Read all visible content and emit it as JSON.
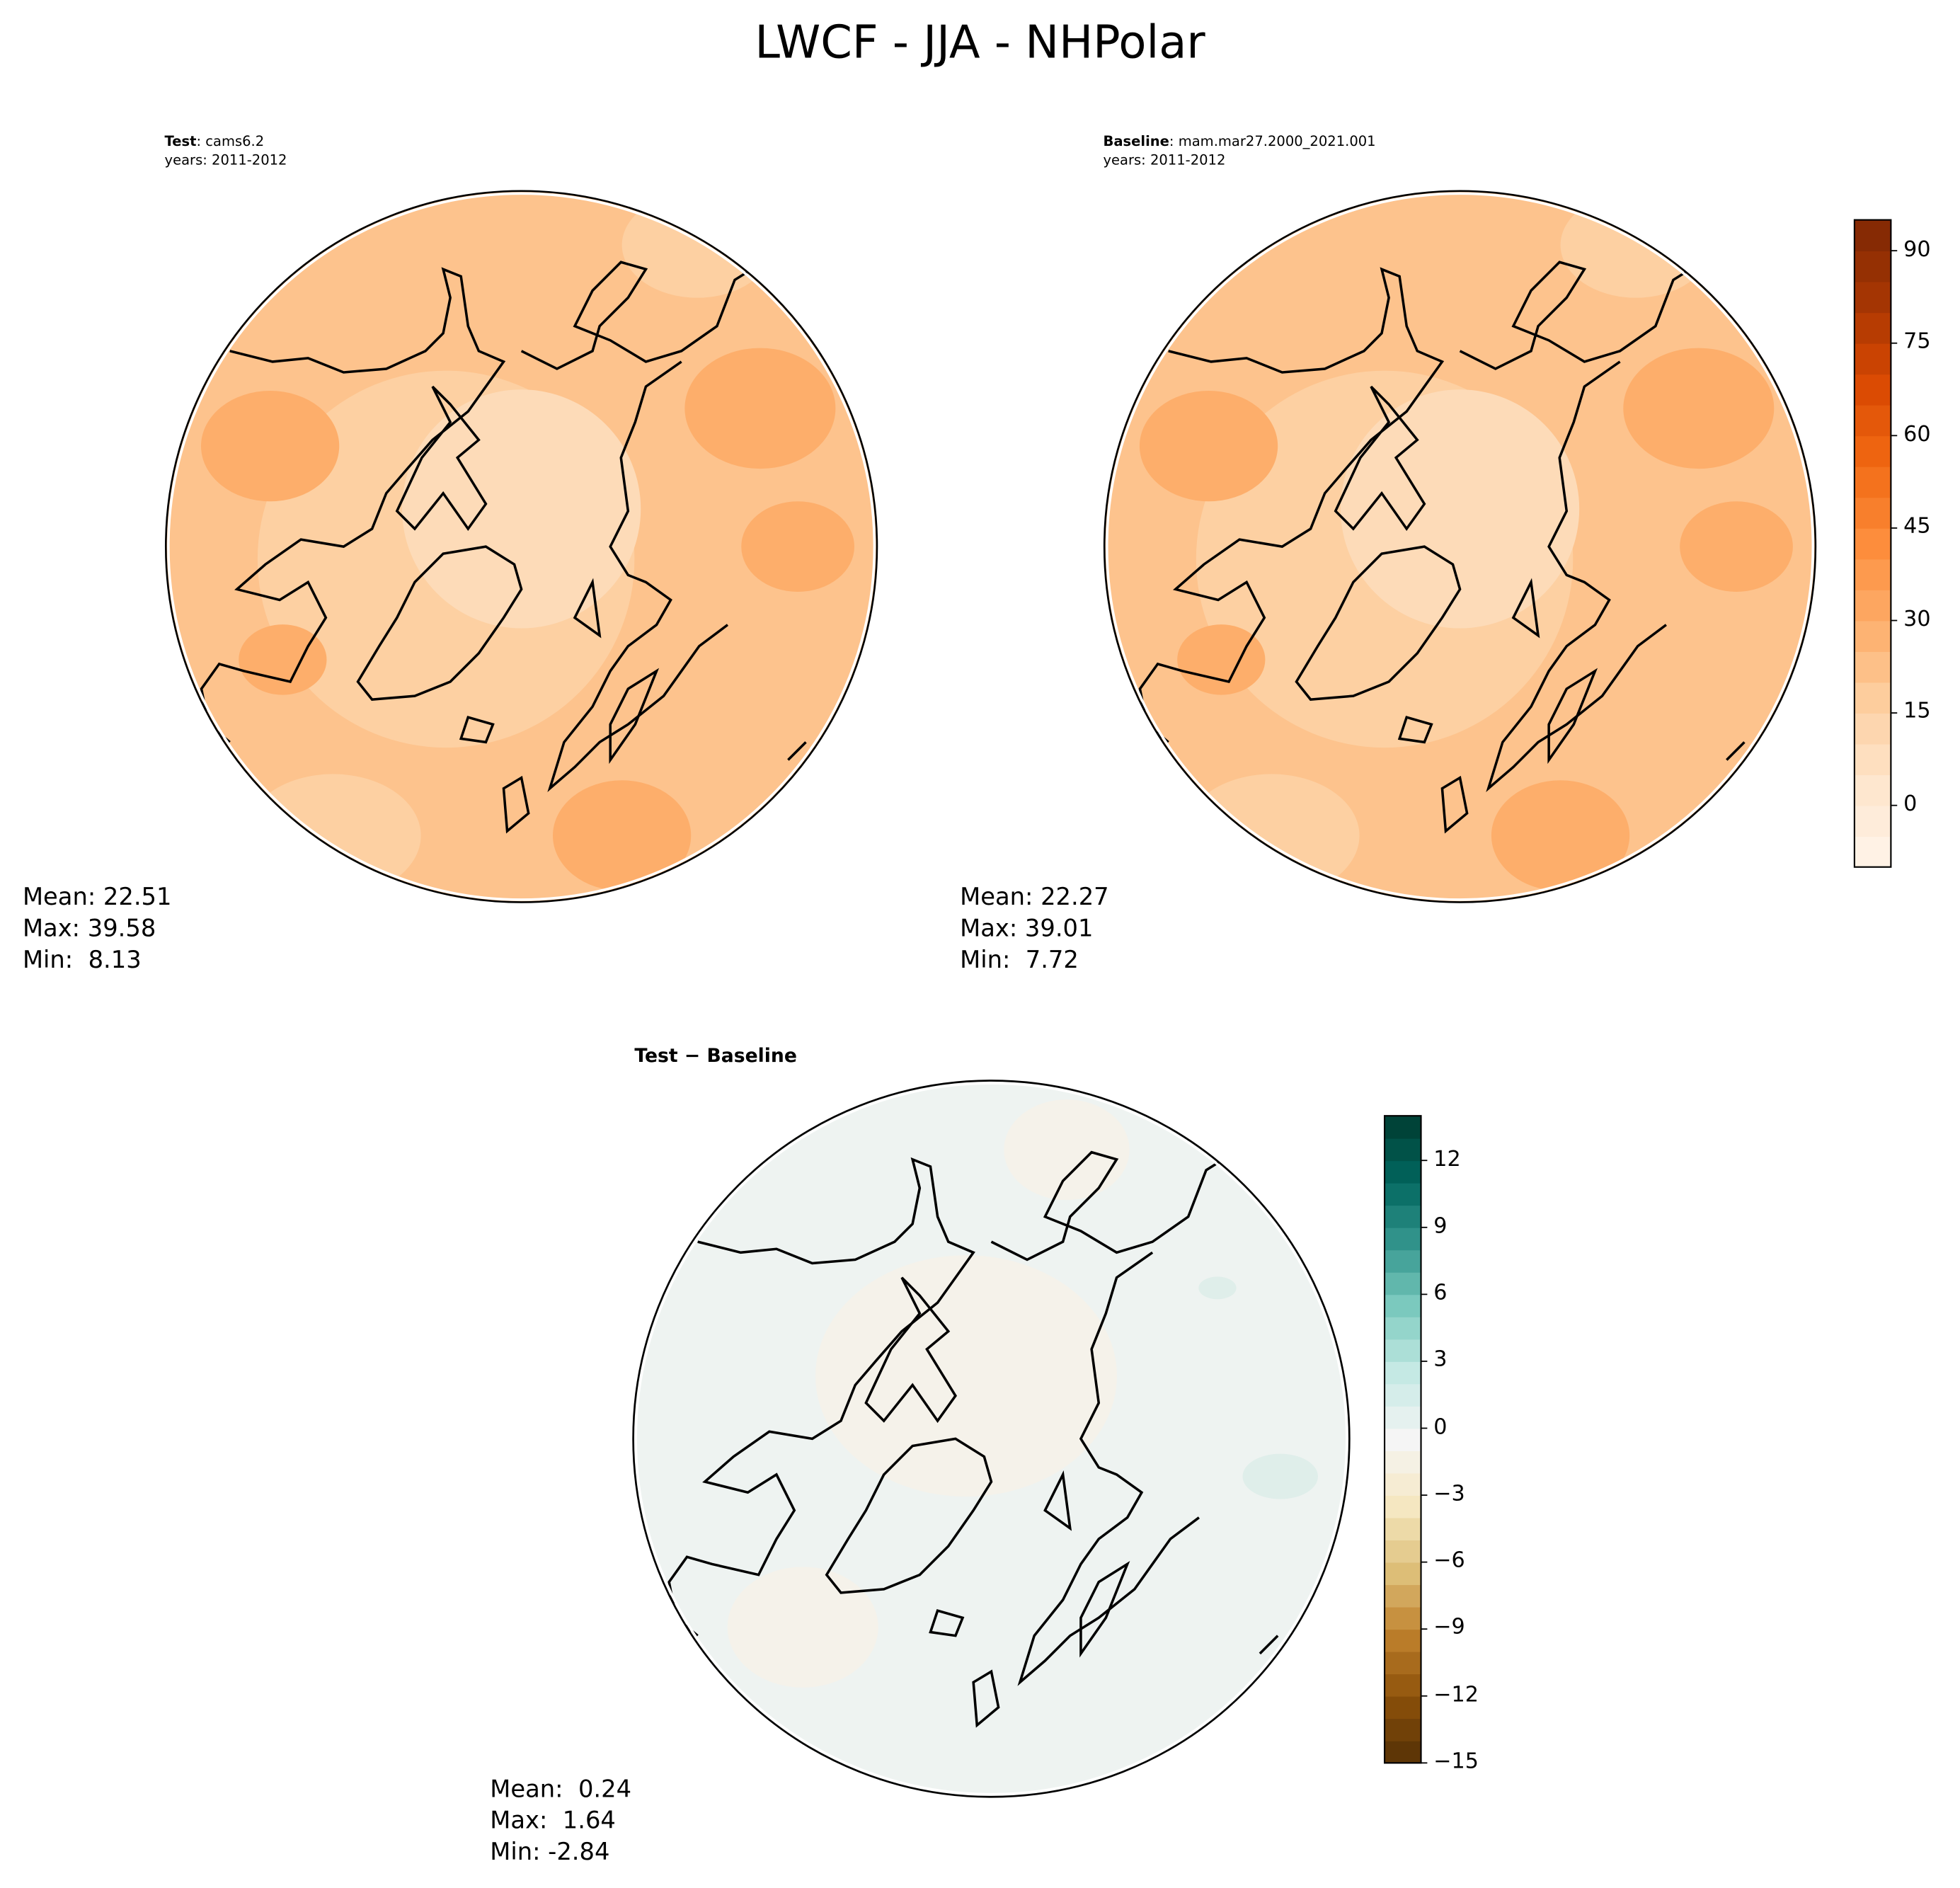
{
  "figure": {
    "title": "LWCF - JJA - NHPolar"
  },
  "chart_data": [
    {
      "type": "heatmap",
      "projection": "north-polar-stereographic",
      "title_bold": "Test",
      "title_rest": ": cams6.2",
      "years": "years: 2011-2012",
      "stats": {
        "mean": "Mean: 22.51",
        "max": "Max: 39.58",
        "min": "Min:  8.13"
      },
      "colormap": "Oranges",
      "colorbar": {
        "range": [
          -10,
          95
        ],
        "step": 5,
        "ticks": [
          "90",
          "75",
          "60",
          "45",
          "30",
          "15",
          "0"
        ],
        "tick_values": [
          90,
          75,
          60,
          45,
          30,
          15,
          0
        ]
      }
    },
    {
      "type": "heatmap",
      "projection": "north-polar-stereographic",
      "title_bold": "Baseline",
      "title_rest": ": mam.mar27.2000_2021.001",
      "years": "years: 2011-2012",
      "stats": {
        "mean": "Mean: 22.27",
        "max": "Max: 39.01",
        "min": "Min:  7.72"
      },
      "colormap": "Oranges"
    },
    {
      "type": "heatmap",
      "projection": "north-polar-stereographic",
      "title_bold": "Test − Baseline",
      "stats": {
        "mean": "Mean:  0.24",
        "max": "Max:  1.64",
        "min": "Min: -2.84"
      },
      "colormap": "BrBG",
      "colorbar": {
        "range": [
          -15,
          14
        ],
        "step": 1,
        "ticks": [
          "12",
          "9",
          "6",
          "3",
          "0",
          "−3",
          "−6",
          "−9",
          "−12",
          "−15"
        ],
        "tick_values": [
          12,
          9,
          6,
          3,
          0,
          -3,
          -6,
          -9,
          -12,
          -15
        ]
      }
    }
  ],
  "colors": {
    "oranges_light": "#fff5eb",
    "oranges_dark": "#7f2704",
    "brbg_low": "#543005",
    "brbg_high": "#003c30",
    "map_fill_abs": "#fdcfa0",
    "map_fill_diff": "#eef3f1"
  }
}
